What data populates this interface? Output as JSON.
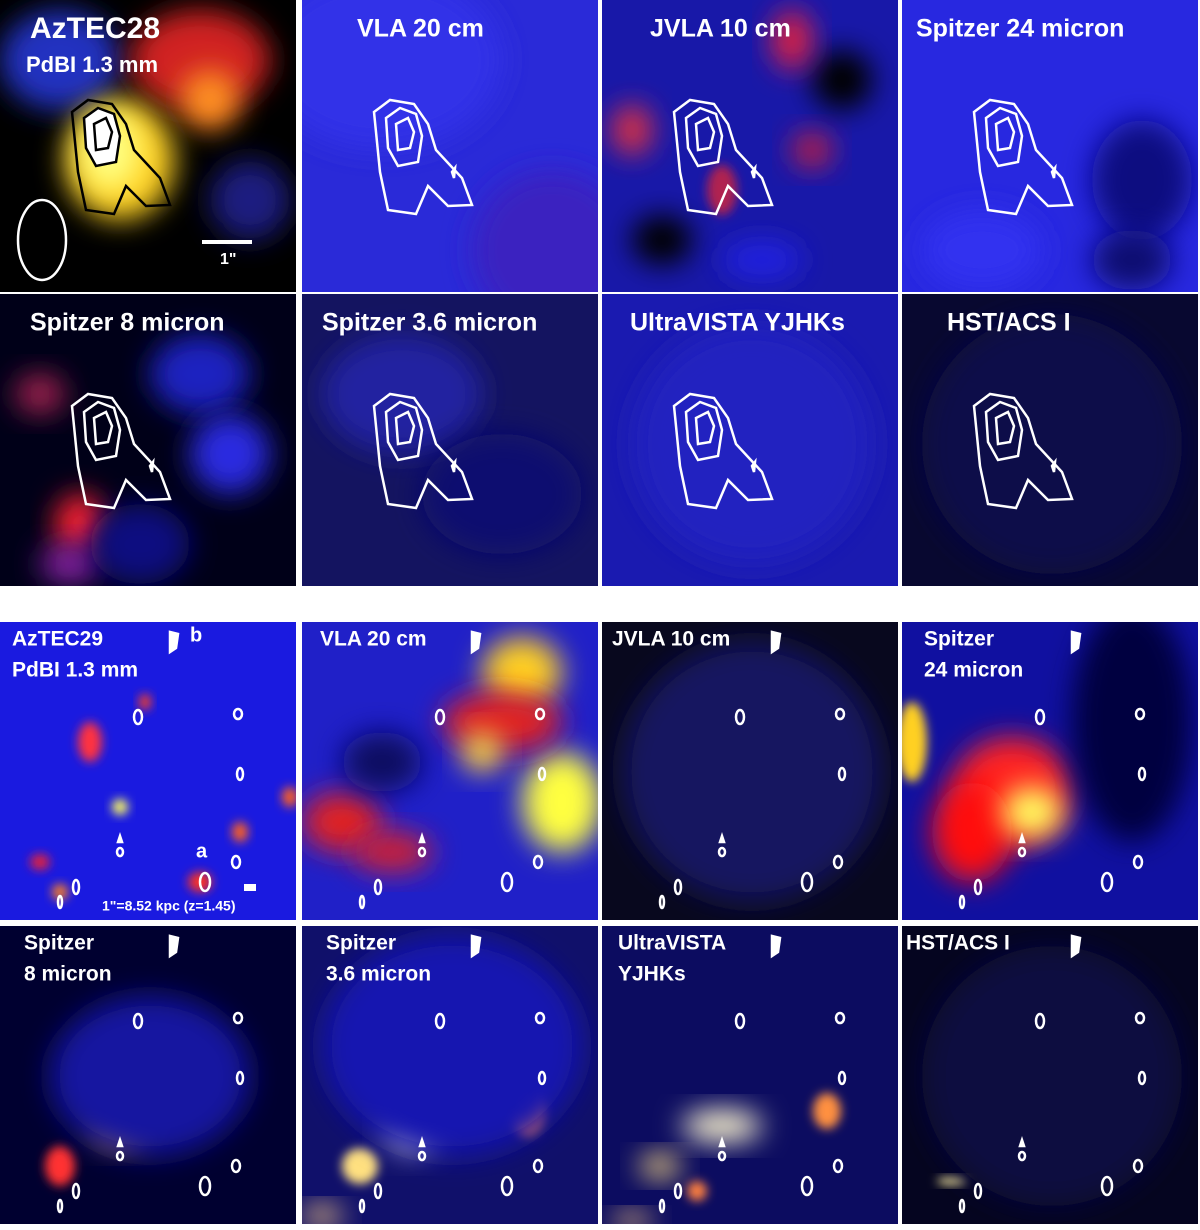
{
  "top": {
    "panels": [
      {
        "lines": [
          "AzTEC28",
          "PdBI 1.3 mm"
        ]
      },
      {
        "lines": [
          "VLA 20 cm"
        ]
      },
      {
        "lines": [
          "JVLA 10 cm"
        ]
      },
      {
        "lines": [
          "Spitzer 24 micron"
        ]
      },
      {
        "lines": [
          "Spitzer 8 micron"
        ]
      },
      {
        "lines": [
          "Spitzer 3.6 micron"
        ]
      },
      {
        "lines": [
          "UltraVISTA YJHKs"
        ]
      },
      {
        "lines": [
          "HST/ACS I"
        ]
      }
    ],
    "scale_label": "1\""
  },
  "bottom": {
    "panels": [
      {
        "lines": [
          "AzTEC29",
          "PdBI 1.3 mm"
        ]
      },
      {
        "lines": [
          "VLA 20 cm"
        ]
      },
      {
        "lines": [
          "JVLA 10 cm"
        ]
      },
      {
        "lines": [
          "Spitzer",
          "24 micron"
        ]
      },
      {
        "lines": [
          "Spitzer",
          "8 micron"
        ]
      },
      {
        "lines": [
          "Spitzer",
          "3.6 micron"
        ]
      },
      {
        "lines": [
          "UltraVISTA",
          " YJHKs"
        ]
      },
      {
        "lines": [
          "HST/ACS I"
        ]
      }
    ],
    "markers": [
      "a",
      "b"
    ],
    "scale_label": "1\"=8.52 kpc (z=1.45)"
  }
}
